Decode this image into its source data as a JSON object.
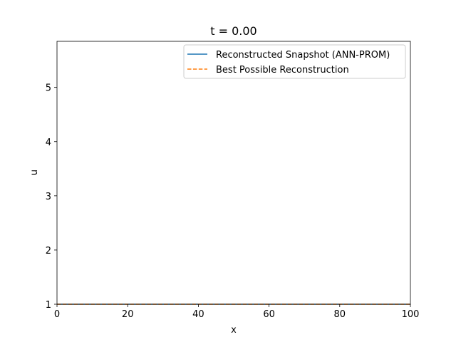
{
  "chart_data": {
    "type": "line",
    "title": "t = 0.00",
    "xlabel": "x",
    "ylabel": "u",
    "xlim": [
      0,
      100
    ],
    "ylim": [
      1,
      5.85
    ],
    "xticks": [
      0,
      20,
      40,
      60,
      80,
      100
    ],
    "yticks": [
      1,
      2,
      3,
      4,
      5
    ],
    "grid": false,
    "legend_position": "top-right",
    "series": [
      {
        "name": "Reconstructed Snapshot (ANN-PROM)",
        "color": "#1f77b4",
        "style": "solid",
        "x": [
          0,
          100
        ],
        "y": [
          1.0,
          1.0
        ]
      },
      {
        "name": "Best Possible Reconstruction",
        "color": "#ff7f0e",
        "style": "dashed",
        "x": [
          0,
          100
        ],
        "y": [
          1.0,
          1.0
        ]
      }
    ]
  }
}
